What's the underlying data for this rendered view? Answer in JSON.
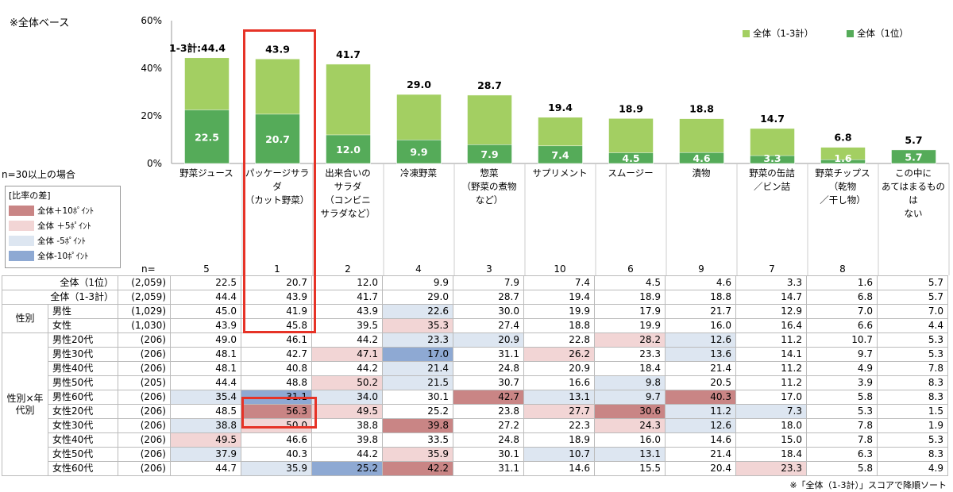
{
  "notes": {
    "base": "※全体ベース",
    "n_condition": "n=30以上の場合",
    "n_label": "n=",
    "footnote": "※「全体（1-3計）」スコアで降順ソート"
  },
  "legend_diff": {
    "title": "[比率の差]",
    "items": [
      {
        "label": "全体＋10ﾎﾟｲﾝﾄ",
        "color": "#c98585"
      },
      {
        "label": "全体 ＋5ﾎﾟｲﾝﾄ",
        "color": "#f2d5d5"
      },
      {
        "label": "全体 -5ﾎﾟｲﾝﾄ",
        "color": "#dde6f1"
      },
      {
        "label": "全体-10ﾎﾟｲﾝﾄ",
        "color": "#8ea9d3"
      }
    ]
  },
  "colors": {
    "series_total": "#a3cf62",
    "series_first": "#55ab59",
    "highlight": "#e63327"
  },
  "chart_data": {
    "type": "bar",
    "categories": [
      "野菜ジュース",
      "パッケージサラダ\n（カット野菜）",
      "出来合いの\nサラダ\n（コンビニ\nサラダなど）",
      "冷凍野菜",
      "惣菜\n（野菜の煮物\nなど）",
      "サプリメント",
      "スムージー",
      "漬物",
      "野菜の缶詰\n／ビン詰",
      "野菜チップス\n（乾物\n／干し物）",
      "この中に\nあてはまるものは\nない"
    ],
    "ranks": [
      "5",
      "1",
      "2",
      "4",
      "3",
      "10",
      "6",
      "9",
      "7",
      "8",
      ""
    ],
    "series": [
      {
        "name": "全体（1-3計）",
        "values": [
          44.4,
          43.9,
          41.7,
          29.0,
          28.7,
          19.4,
          18.9,
          18.8,
          14.7,
          6.8,
          5.7
        ]
      },
      {
        "name": "全体（1位）",
        "values": [
          22.5,
          20.7,
          12.0,
          9.9,
          7.9,
          7.4,
          4.5,
          4.6,
          3.3,
          1.6,
          5.7
        ]
      }
    ],
    "first_label_prefix": "1-3計:",
    "y_ticks": [
      "0%",
      "20%",
      "40%",
      "60%"
    ],
    "ylim": [
      0,
      60
    ],
    "legend_position": "top-right"
  },
  "table": {
    "rows": [
      {
        "group": "",
        "label": "全体（1位）",
        "n": "(2,059)",
        "values": [
          "22.5",
          "20.7",
          "12.0",
          "9.9",
          "7.9",
          "7.4",
          "4.5",
          "4.6",
          "3.3",
          "1.6",
          "5.7"
        ],
        "shade": [
          "",
          "",
          "",
          "",
          "",
          "",
          "",
          "",
          "",
          "",
          ""
        ]
      },
      {
        "group": "",
        "label": "全体（1-3計）",
        "n": "(2,059)",
        "values": [
          "44.4",
          "43.9",
          "41.7",
          "29.0",
          "28.7",
          "19.4",
          "18.9",
          "18.8",
          "14.7",
          "6.8",
          "5.7"
        ],
        "shade": [
          "",
          "",
          "",
          "",
          "",
          "",
          "",
          "",
          "",
          "",
          ""
        ]
      },
      {
        "group": "性別",
        "label": "男性",
        "n": "(1,029)",
        "values": [
          "45.0",
          "41.9",
          "43.9",
          "22.6",
          "30.0",
          "19.9",
          "17.9",
          "21.7",
          "12.9",
          "7.0",
          "7.0"
        ],
        "shade": [
          "",
          "",
          "",
          "l",
          "",
          "",
          "",
          "",
          "",
          "",
          ""
        ]
      },
      {
        "group": "",
        "label": "女性",
        "n": "(1,030)",
        "values": [
          "43.9",
          "45.8",
          "39.5",
          "35.3",
          "27.4",
          "18.8",
          "19.9",
          "16.0",
          "16.4",
          "6.6",
          "4.4"
        ],
        "shade": [
          "",
          "",
          "",
          "p",
          "",
          "",
          "",
          "",
          "",
          "",
          ""
        ]
      },
      {
        "group": "性別×年代別",
        "label": "男性20代",
        "n": "(206)",
        "values": [
          "49.0",
          "46.1",
          "44.2",
          "23.3",
          "20.9",
          "22.8",
          "28.2",
          "12.6",
          "11.2",
          "10.7",
          "5.3"
        ],
        "shade": [
          "",
          "",
          "",
          "l",
          "l",
          "",
          "p",
          "l",
          "",
          "",
          ""
        ]
      },
      {
        "group": "",
        "label": "男性30代",
        "n": "(206)",
        "values": [
          "48.1",
          "42.7",
          "47.1",
          "17.0",
          "31.1",
          "26.2",
          "23.3",
          "13.6",
          "14.1",
          "9.7",
          "5.3"
        ],
        "shade": [
          "",
          "",
          "p",
          "B",
          "",
          "p",
          "",
          "l",
          "",
          "",
          ""
        ]
      },
      {
        "group": "",
        "label": "男性40代",
        "n": "(206)",
        "values": [
          "48.1",
          "40.8",
          "44.2",
          "21.4",
          "24.8",
          "20.9",
          "18.4",
          "21.4",
          "11.2",
          "4.9",
          "7.8"
        ],
        "shade": [
          "",
          "",
          "",
          "l",
          "",
          "",
          "",
          "",
          "",
          "",
          ""
        ]
      },
      {
        "group": "",
        "label": "男性50代",
        "n": "(205)",
        "values": [
          "44.4",
          "48.8",
          "50.2",
          "21.5",
          "30.7",
          "16.6",
          "9.8",
          "20.5",
          "11.2",
          "3.9",
          "8.3"
        ],
        "shade": [
          "",
          "",
          "p",
          "l",
          "",
          "",
          "l",
          "",
          "",
          "",
          ""
        ]
      },
      {
        "group": "",
        "label": "男性60代",
        "n": "(206)",
        "values": [
          "35.4",
          "31.1",
          "34.0",
          "30.1",
          "42.7",
          "13.1",
          "9.7",
          "40.3",
          "17.0",
          "5.8",
          "8.3"
        ],
        "shade": [
          "l",
          "B",
          "l",
          "",
          "R",
          "l",
          "l",
          "R",
          "",
          "",
          ""
        ]
      },
      {
        "group": "",
        "label": "女性20代",
        "n": "(206)",
        "values": [
          "48.5",
          "56.3",
          "49.5",
          "25.2",
          "23.8",
          "27.7",
          "30.6",
          "11.2",
          "7.3",
          "5.3",
          "1.5"
        ],
        "shade": [
          "",
          "R",
          "p",
          "",
          "",
          "p",
          "R",
          "l",
          "l",
          "",
          ""
        ]
      },
      {
        "group": "",
        "label": "女性30代",
        "n": "(206)",
        "values": [
          "38.8",
          "50.0",
          "38.8",
          "39.8",
          "27.2",
          "22.3",
          "24.3",
          "12.6",
          "18.0",
          "7.8",
          "1.9"
        ],
        "shade": [
          "l",
          "p",
          "",
          "R",
          "",
          "",
          "p",
          "l",
          "",
          "",
          ""
        ]
      },
      {
        "group": "",
        "label": "女性40代",
        "n": "(206)",
        "values": [
          "49.5",
          "46.6",
          "39.8",
          "33.5",
          "24.8",
          "18.9",
          "16.0",
          "14.6",
          "15.0",
          "7.8",
          "5.3"
        ],
        "shade": [
          "p",
          "",
          "",
          "",
          "",
          "",
          "",
          "",
          "",
          "",
          ""
        ]
      },
      {
        "group": "",
        "label": "女性50代",
        "n": "(206)",
        "values": [
          "37.9",
          "40.3",
          "44.2",
          "35.9",
          "30.1",
          "10.7",
          "13.1",
          "21.4",
          "18.4",
          "6.3",
          "8.3"
        ],
        "shade": [
          "l",
          "",
          "",
          "p",
          "",
          "l",
          "l",
          "",
          "",
          "",
          ""
        ]
      },
      {
        "group": "",
        "label": "女性60代",
        "n": "(206)",
        "values": [
          "44.7",
          "35.9",
          "25.2",
          "42.2",
          "31.1",
          "14.6",
          "15.5",
          "20.4",
          "23.3",
          "5.8",
          "4.9"
        ],
        "shade": [
          "",
          "l",
          "B",
          "R",
          "",
          "",
          "",
          "",
          "p",
          "",
          ""
        ]
      }
    ]
  }
}
